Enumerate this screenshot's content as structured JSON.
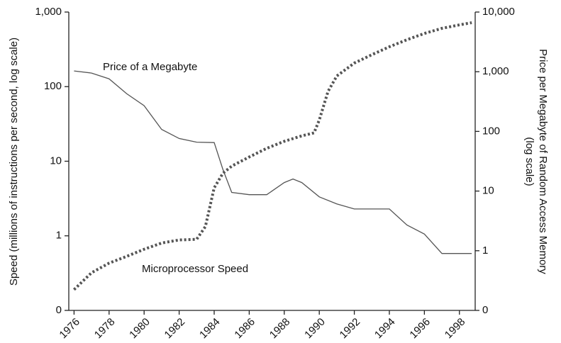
{
  "chart_data": {
    "type": "line",
    "y_label": "Speed (millions of instructions per second, log scale)",
    "y2_label": [
      "Price per Megabyte of Random Access Memory",
      "(log scale)"
    ],
    "annotations": [
      "Price of a Megabyte",
      "Microprocessor Speed"
    ],
    "xlim": [
      1975.7,
      1998.9
    ],
    "xticks": [
      1976,
      1978,
      1980,
      1982,
      1984,
      1986,
      1988,
      1990,
      1992,
      1994,
      1996,
      1998
    ],
    "ylim": [
      0.1,
      1000
    ],
    "log_y": true,
    "yticks": [
      {
        "value": 0.1,
        "label": "0"
      },
      1,
      10,
      100,
      {
        "value": 1000,
        "label": "1,000"
      }
    ],
    "y2lim": [
      0.1,
      10000
    ],
    "log_y2": true,
    "y2ticks": [
      {
        "value": 0.1,
        "label": "0"
      },
      1,
      10,
      100,
      {
        "value": 1000,
        "label": "1,000"
      },
      {
        "value": 10000,
        "label": "10,000"
      }
    ],
    "grid": false,
    "series": [
      {
        "name": "Microprocessor Speed",
        "color": "#555555",
        "style": "dotted",
        "axis": "y",
        "x": [
          1976,
          1977,
          1978,
          1979,
          1980,
          1981,
          1982,
          1983,
          1983.5,
          1984,
          1984.5,
          1985,
          1986,
          1987,
          1988,
          1989,
          1989.7,
          1990,
          1990.5,
          1991,
          1992,
          1993,
          1994,
          1995,
          1996,
          1997,
          1998,
          1998.7
        ],
        "values": [
          0.19,
          0.32,
          0.43,
          0.53,
          0.66,
          0.8,
          0.88,
          0.9,
          1.33,
          4.4,
          6.9,
          8.6,
          11.4,
          14.9,
          18.5,
          21.9,
          24,
          35.7,
          86,
          139,
          207,
          268,
          342,
          425,
          517,
          604,
          673,
          720
        ]
      },
      {
        "name": "Price of a Megabyte",
        "color": "#555555",
        "style": "solid",
        "axis": "y2",
        "x": [
          1976,
          1977,
          1978,
          1979,
          1980,
          1981,
          1982,
          1983,
          1984,
          1984.5,
          1985,
          1986,
          1987,
          1988,
          1988.5,
          1989,
          1990,
          1991,
          1992,
          1993,
          1994,
          1995,
          1996,
          1997,
          1998,
          1998.7
        ],
        "values": [
          1030,
          950,
          760,
          430,
          270,
          108,
          76,
          66,
          65,
          23,
          9.5,
          8.7,
          8.7,
          13.9,
          15.9,
          13.9,
          8.0,
          6.1,
          5.0,
          5.0,
          5.0,
          2.7,
          1.9,
          0.9,
          0.9,
          0.9
        ]
      }
    ]
  }
}
